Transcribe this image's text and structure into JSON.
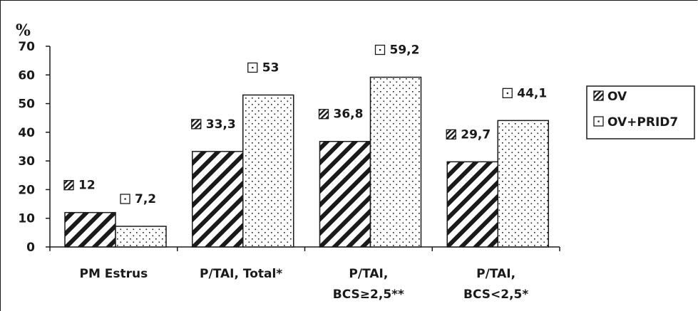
{
  "chart_data": {
    "type": "bar",
    "ylabel": "%",
    "ylim": [
      0,
      70
    ],
    "yticks": [
      "0",
      "10",
      "20",
      "30",
      "40",
      "50",
      "60",
      "70"
    ],
    "categories": [
      [
        "PM Estrus"
      ],
      [
        "P/TAI, Total*"
      ],
      [
        "P/TAI,",
        "BCS≥2,5**"
      ],
      [
        "P/TAI,",
        "BCS<2,5*"
      ]
    ],
    "series": [
      {
        "name": "OV",
        "pattern": "hatch",
        "values": [
          12,
          33.3,
          36.8,
          29.7
        ],
        "labels": [
          "12",
          "33,3",
          "36,8",
          "29,7"
        ]
      },
      {
        "name": "OV+PRID7",
        "pattern": "dots",
        "values": [
          7.2,
          53,
          59.2,
          44.1
        ],
        "labels": [
          "7,2",
          "53",
          "59,2",
          "44,1"
        ]
      }
    ],
    "legend": "right",
    "grid": false,
    "colors": {
      "ink": "#1a1a1a",
      "background": "#ffffff"
    }
  }
}
